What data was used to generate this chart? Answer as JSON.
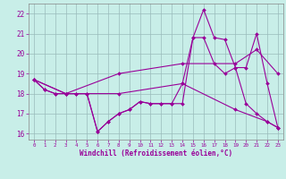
{
  "xlabel": "Windchill (Refroidissement éolien,°C)",
  "background_color": "#c8eee8",
  "grid_color": "#99bbbb",
  "line_color": "#990099",
  "xlim": [
    -0.5,
    23.5
  ],
  "ylim": [
    15.7,
    22.5
  ],
  "xticks": [
    0,
    1,
    2,
    3,
    4,
    5,
    6,
    7,
    8,
    9,
    10,
    11,
    12,
    13,
    14,
    15,
    16,
    17,
    18,
    19,
    20,
    21,
    22,
    23
  ],
  "yticks": [
    16,
    17,
    18,
    19,
    20,
    21,
    22
  ],
  "series": [
    {
      "x": [
        0,
        1,
        2,
        3,
        4,
        5,
        6,
        7,
        8,
        9,
        10,
        11,
        12,
        13,
        14,
        15,
        16,
        17,
        18,
        19,
        20,
        21,
        22,
        23
      ],
      "y": [
        18.7,
        18.2,
        18.0,
        18.0,
        18.0,
        18.0,
        16.1,
        16.6,
        17.0,
        17.2,
        17.6,
        17.5,
        17.5,
        17.5,
        17.5,
        20.8,
        22.2,
        20.8,
        20.7,
        19.3,
        19.3,
        21.0,
        18.5,
        16.3
      ]
    },
    {
      "x": [
        0,
        1,
        2,
        3,
        4,
        5,
        6,
        7,
        8,
        9,
        10,
        11,
        12,
        13,
        14,
        15,
        16,
        17,
        18,
        19,
        20,
        21,
        22,
        23
      ],
      "y": [
        18.7,
        18.2,
        18.0,
        18.0,
        18.0,
        18.0,
        16.1,
        16.6,
        17.0,
        17.2,
        17.6,
        17.5,
        17.5,
        17.5,
        18.5,
        20.8,
        20.8,
        19.5,
        19.0,
        19.3,
        17.5,
        17.0,
        16.6,
        16.3
      ]
    },
    {
      "x": [
        0,
        3,
        8,
        14,
        19,
        21,
        23
      ],
      "y": [
        18.7,
        18.0,
        19.0,
        19.5,
        19.5,
        20.2,
        19.0
      ]
    },
    {
      "x": [
        0,
        3,
        8,
        14,
        19,
        22,
        23
      ],
      "y": [
        18.7,
        18.0,
        18.0,
        18.5,
        17.2,
        16.6,
        16.3
      ]
    }
  ]
}
